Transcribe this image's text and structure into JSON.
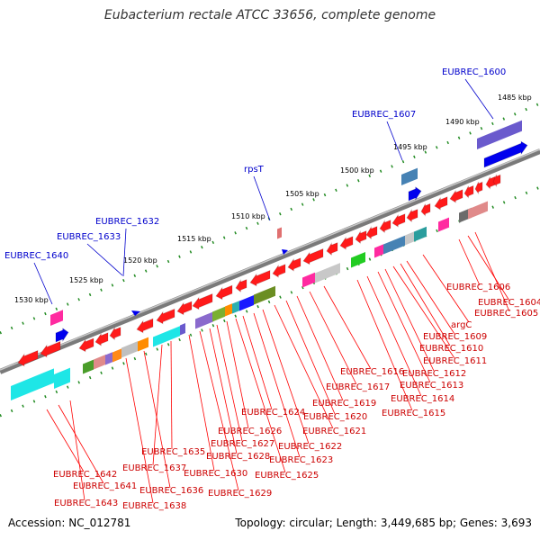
{
  "header": {
    "title": "Eubacterium rectale ATCC 33656, complete genome"
  },
  "footer": {
    "accession": "Accession: NC_012781",
    "summary": "Topology: circular; Length: 3,449,685 bp; Genes: 3,693"
  },
  "colors": {
    "forward_label": "#0000cc",
    "reverse_label": "#cc0000",
    "backbone": "#888888",
    "ticks": "#228b22"
  },
  "ticks": [
    "1485 kbp",
    "1490 kbp",
    "1495 kbp",
    "1500 kbp",
    "1505 kbp",
    "1510 kbp",
    "1515 kbp",
    "1520 kbp",
    "1525 kbp",
    "1530 kbp"
  ],
  "forward_labels": [
    "EUBREC_1600",
    "EUBREC_1607",
    "rpsT",
    "EUBREC_1632",
    "EUBREC_1633",
    "EUBREC_1640"
  ],
  "reverse_labels": [
    "EUBREC_1606",
    "EUBREC_1604",
    "EUBREC_1605",
    "argC",
    "EUBREC_1609",
    "EUBREC_1610",
    "EUBREC_1611",
    "EUBREC_1612",
    "EUBREC_1613",
    "EUBREC_1614",
    "EUBREC_1615",
    "EUBREC_1616",
    "EUBREC_1617",
    "EUBREC_1619",
    "EUBREC_1620",
    "EUBREC_1621",
    "EUBREC_1622",
    "EUBREC_1623",
    "EUBREC_1624",
    "EUBREC_1625",
    "EUBREC_1626",
    "EUBREC_1627",
    "EUBREC_1628",
    "EUBREC_1629",
    "EUBREC_1630",
    "EUBREC_1635",
    "EUBREC_1637",
    "EUBREC_1636",
    "EUBREC_1638",
    "EUBREC_1642",
    "EUBREC_1641",
    "EUBREC_1643"
  ]
}
